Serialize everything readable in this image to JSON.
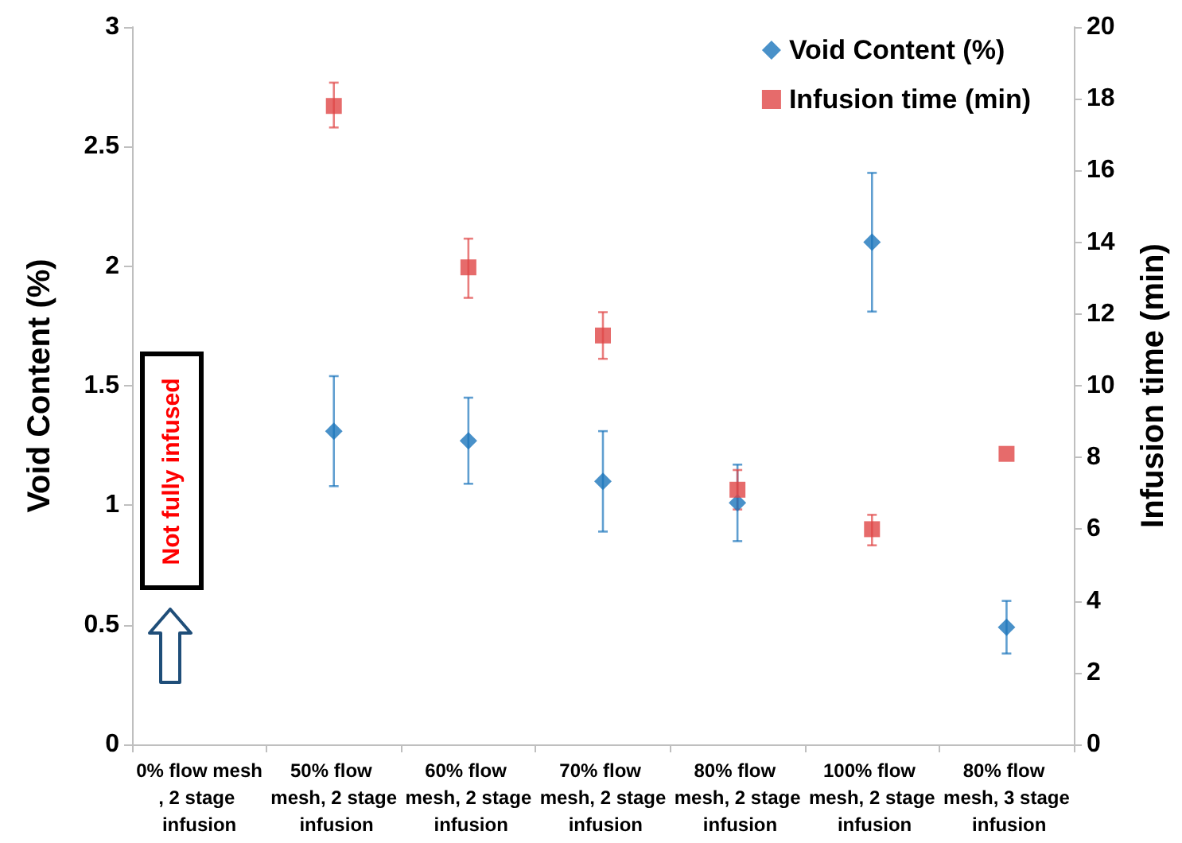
{
  "chart_data": {
    "type": "scatter",
    "categories": [
      "0% flow mesh, 2 stage infusion",
      "50% flow mesh, 2 stage infusion",
      "60% flow mesh, 2 stage infusion",
      "70% flow mesh, 2 stage infusion",
      "80% flow mesh, 2 stage infusion",
      "100% flow mesh, 2 stage infusion",
      "80% flow mesh, 3 stage infusion"
    ],
    "series": [
      {
        "name": "Void Content (%)",
        "color": "#1b75bc",
        "marker": "diamond",
        "values": [
          null,
          1.31,
          1.27,
          1.1,
          1.01,
          2.1,
          0.49
        ],
        "errors": [
          null,
          [
            1.08,
            1.54
          ],
          [
            1.09,
            1.45
          ],
          [
            0.89,
            1.31
          ],
          [
            0.85,
            1.17
          ],
          [
            1.81,
            2.39
          ],
          [
            0.38,
            0.6
          ]
        ]
      },
      {
        "name": "Infusion time (min)",
        "color": "#e04646",
        "marker": "square",
        "axis": "y2",
        "values": [
          null,
          17.8,
          13.3,
          11.4,
          7.1,
          6.0,
          8.1
        ],
        "errors": [
          null,
          [
            17.2,
            18.45
          ],
          [
            12.45,
            14.1
          ],
          [
            10.75,
            12.05
          ],
          [
            6.55,
            7.65
          ],
          [
            5.55,
            6.4
          ],
          null
        ]
      }
    ],
    "ylabel": "Void Content (%)",
    "y2label": "Infusion time (min)",
    "ylim": [
      0,
      3
    ],
    "yticks": [
      0,
      0.5,
      1,
      1.5,
      2,
      2.5,
      3
    ],
    "y2lim": [
      0,
      20
    ],
    "y2ticks": [
      0,
      2,
      4,
      6,
      8,
      10,
      12,
      14,
      16,
      18,
      20
    ],
    "annotations": [
      "Not fully infused"
    ],
    "legend": "top right",
    "grid": false
  }
}
